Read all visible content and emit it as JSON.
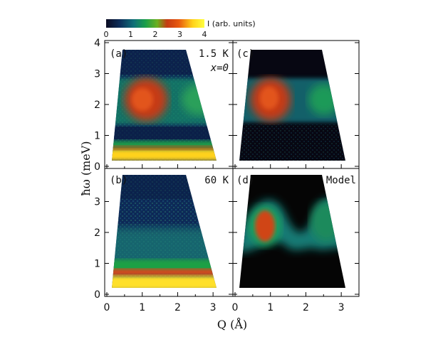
{
  "chart_data": {
    "type": "heatmap",
    "xlabel": "Q (Å)",
    "ylabel": "ħω (meV)",
    "xlim": [
      0,
      3.5
    ],
    "ylim": [
      0,
      4
    ],
    "x_ticks": [
      "0",
      "1",
      "2",
      "3"
    ],
    "y_ticks_top": [
      "0",
      "1",
      "2",
      "3",
      "4"
    ],
    "y_ticks_bottom": [
      "0",
      "1",
      "2",
      "3"
    ],
    "colorbar": {
      "label": "I (arb. units)",
      "range": [
        0,
        4
      ],
      "ticks": [
        "0",
        "1",
        "2",
        "3",
        "4"
      ],
      "colors": [
        "#0b0b22",
        "#0d2e5a",
        "#0f6f78",
        "#1a9e4a",
        "#6bb01e",
        "#c63a12",
        "#e85a10",
        "#ffd21a",
        "#ffff40"
      ]
    },
    "panels": [
      {
        "tag": "(a)",
        "note": "1.5 K",
        "note2": "x=0",
        "features": [
          {
            "kind": "elastic-band",
            "energy_range": [
              0,
              0.5
            ],
            "intensity": 3.9
          },
          {
            "kind": "mode",
            "q_center": 1.0,
            "energy": 2.2,
            "intensity": 2.7
          },
          {
            "kind": "mode",
            "q_center": 2.4,
            "energy": 2.2,
            "intensity": 1.5
          }
        ]
      },
      {
        "tag": "(c)",
        "note": "",
        "note2": "",
        "features": [
          {
            "kind": "mode",
            "q_center": 1.0,
            "energy": 2.2,
            "intensity": 2.6
          },
          {
            "kind": "mode",
            "q_center": 2.4,
            "energy": 2.2,
            "intensity": 1.3
          }
        ]
      },
      {
        "tag": "(b)",
        "note": "60 K",
        "note2": "",
        "features": [
          {
            "kind": "elastic-band",
            "energy_range": [
              0,
              0.6
            ],
            "intensity": 3.9
          },
          {
            "kind": "quasielastic",
            "energy_range": [
              0,
              1.5
            ],
            "intensity": 1.2
          }
        ]
      },
      {
        "tag": "(d)",
        "note": "Model",
        "note2": "",
        "features": [
          {
            "kind": "mode",
            "q_center": 0.9,
            "energy": 2.3,
            "intensity": 3.0
          },
          {
            "kind": "mode",
            "q_center": 2.4,
            "energy": 2.3,
            "intensity": 1.5
          }
        ]
      }
    ]
  }
}
